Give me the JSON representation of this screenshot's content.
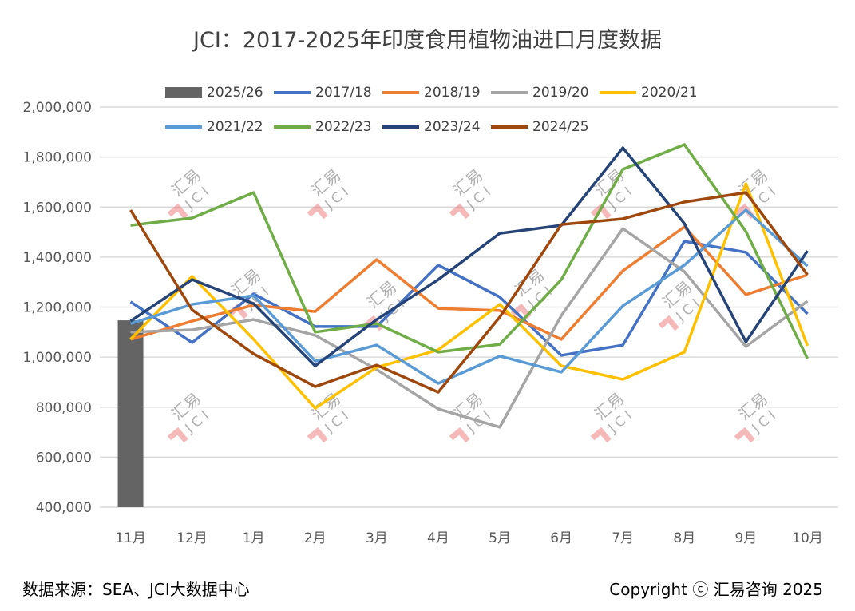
{
  "chart_data": {
    "type": "line",
    "title": "JCI：2017-2025年印度食用植物油进口月度数据",
    "xlabel": "",
    "ylabel": "",
    "ylim": [
      400000,
      2000000
    ],
    "yticks": [
      400000,
      600000,
      800000,
      1000000,
      1200000,
      1400000,
      1600000,
      1800000,
      2000000
    ],
    "ytick_labels": [
      "400,000",
      "600,000",
      "800,000",
      "1,000,000",
      "1,200,000",
      "1,400,000",
      "1,600,000",
      "1,800,000",
      "2,000,000"
    ],
    "categories": [
      "11月",
      "12月",
      "1月",
      "2月",
      "3月",
      "4月",
      "5月",
      "6月",
      "7月",
      "8月",
      "9月",
      "10月"
    ],
    "grid": true,
    "legend_placement": "top",
    "bar_series": {
      "name": "2025/26",
      "color": "#646464",
      "values": [
        1147000
      ]
    },
    "series": [
      {
        "name": "2017/18",
        "color": "#4472C4",
        "values": [
          1221000,
          1058000,
          1253000,
          1122000,
          1122000,
          1368000,
          1240000,
          1007000,
          1048000,
          1463000,
          1419000,
          1173000
        ]
      },
      {
        "name": "2018/19",
        "color": "#ED7D31",
        "values": [
          1071000,
          1144000,
          1208000,
          1182000,
          1390000,
          1195000,
          1186000,
          1071000,
          1345000,
          1521000,
          1250000,
          1329000
        ]
      },
      {
        "name": "2019/20",
        "color": "#A5A5A5",
        "values": [
          1100000,
          1109000,
          1150000,
          1087000,
          950000,
          793000,
          720000,
          1166000,
          1514000,
          1342000,
          1042000,
          1224000
        ]
      },
      {
        "name": "2020/21",
        "color": "#FFC000",
        "values": [
          1071000,
          1323000,
          1071000,
          796000,
          959000,
          1029000,
          1211000,
          965000,
          911000,
          1020000,
          1693000,
          1045000
        ]
      },
      {
        "name": "2021/22",
        "color": "#5B9BD5",
        "values": [
          1134000,
          1211000,
          1246000,
          984000,
          1048000,
          895000,
          1004000,
          940000,
          1205000,
          1368000,
          1588000,
          1364000
        ]
      },
      {
        "name": "2022/23",
        "color": "#70AD47",
        "values": [
          1527000,
          1556000,
          1658000,
          1100000,
          1134000,
          1020000,
          1051000,
          1310000,
          1751000,
          1850000,
          1502000,
          994000
        ]
      },
      {
        "name": "2023/24",
        "color": "#264478",
        "values": [
          1144000,
          1310000,
          1214000,
          965000,
          1150000,
          1310000,
          1495000,
          1527000,
          1837000,
          1534000,
          1061000,
          1425000
        ]
      },
      {
        "name": "2024/25",
        "color": "#9E480E",
        "values": [
          1588000,
          1189000,
          1013000,
          882000,
          968000,
          860000,
          1160000,
          1530000,
          1553000,
          1620000,
          1658000,
          1329000
        ]
      }
    ]
  },
  "footer": {
    "source": "数据来源：SEA、JCI大数据中心",
    "copyright": "Copyright ⓒ 汇易咨询 2025"
  },
  "watermark": {
    "text1": "汇易",
    "text2": "JCI"
  }
}
